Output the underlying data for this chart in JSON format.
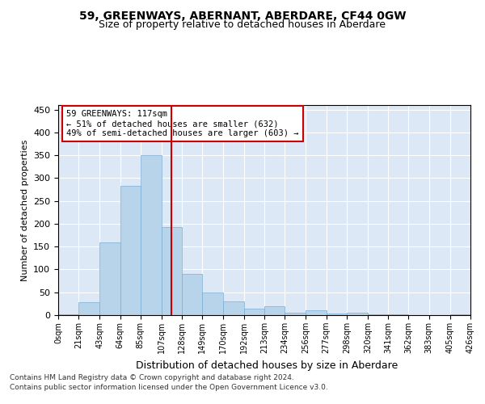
{
  "title": "59, GREENWAYS, ABERNANT, ABERDARE, CF44 0GW",
  "subtitle": "Size of property relative to detached houses in Aberdare",
  "xlabel": "Distribution of detached houses by size in Aberdare",
  "ylabel": "Number of detached properties",
  "bar_color": "#b8d4ea",
  "bar_edge_color": "#7aadd4",
  "background_color": "#dce8f5",
  "grid_color": "#ffffff",
  "annotation_line_color": "#cc0000",
  "annotation_box_color": "#cc0000",
  "annotation_text": "59 GREENWAYS: 117sqm\n← 51% of detached houses are smaller (632)\n49% of semi-detached houses are larger (603) →",
  "property_sqm": 117,
  "footnote_line1": "Contains HM Land Registry data © Crown copyright and database right 2024.",
  "footnote_line2": "Contains public sector information licensed under the Open Government Licence v3.0.",
  "bins": [
    0,
    21,
    43,
    64,
    85,
    107,
    128,
    149,
    170,
    192,
    213,
    234,
    256,
    277,
    298,
    320,
    341,
    362,
    383,
    405,
    426
  ],
  "counts": [
    2,
    28,
    160,
    283,
    350,
    192,
    90,
    50,
    30,
    14,
    20,
    5,
    10,
    4,
    5,
    2,
    1,
    0,
    0,
    1
  ],
  "ylim": [
    0,
    460
  ],
  "yticks": [
    0,
    50,
    100,
    150,
    200,
    250,
    300,
    350,
    400,
    450
  ],
  "fig_width": 6.0,
  "fig_height": 5.0,
  "dpi": 100
}
